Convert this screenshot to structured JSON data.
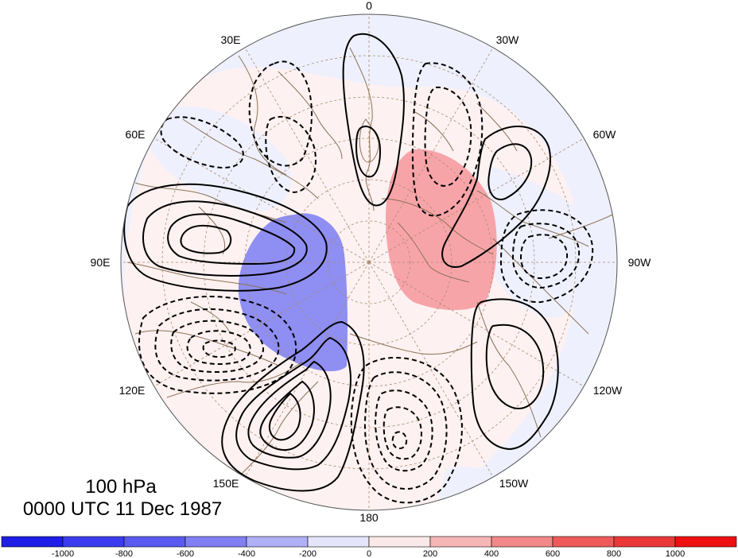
{
  "map": {
    "level_label": "100 hPa",
    "time_label": "0000 UTC 11 Dec 1987",
    "longitude_labels": [
      "0",
      "30W",
      "60W",
      "90W",
      "120W",
      "150W",
      "180",
      "150E",
      "120E",
      "90E",
      "60E",
      "30E"
    ]
  },
  "colorbar": {
    "tick_labels": [
      "-1000",
      "-800",
      "-600",
      "-400",
      "-200",
      "0",
      "200",
      "400",
      "600",
      "800",
      "1000"
    ],
    "colors": [
      "#1e1ee6",
      "#3c3cee",
      "#5a5af0",
      "#8080f3",
      "#b0b0f7",
      "#e4e4fb",
      "#fbe8e8",
      "#f7b6b6",
      "#f28888",
      "#ee5a5a",
      "#ea3838",
      "#ee1010"
    ]
  },
  "colors": {
    "coast": "#8b7358",
    "grid": "#a98c6e",
    "neg_light": "#eef0fd",
    "pos_light": "#fdf1f1",
    "neg_mid": "#8e8ef3",
    "pos_mid": "#f7a4a8"
  }
}
